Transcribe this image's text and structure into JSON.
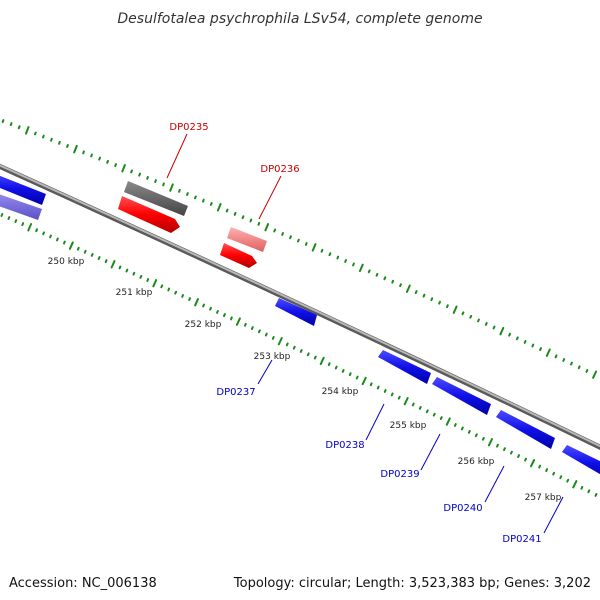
{
  "title": "Desulfotalea psychrophila LSv54, complete genome",
  "footer": {
    "accession": "Accession: NC_006138",
    "summary": "Topology: circular; Length: 3,523,383 bp; Genes: 3,202"
  },
  "colors": {
    "backbone": "#8a8a8a",
    "tick": "#1a8a1a",
    "label_red": "#cc0000",
    "label_blue": "#0000cc"
  },
  "ticks": [
    "250 kbp",
    "251 kbp",
    "252 kbp",
    "253 kbp",
    "254 kbp",
    "255 kbp",
    "256 kbp",
    "257 kbp"
  ],
  "genes": [
    {
      "label": "",
      "color": "#1a1ae6",
      "strand": "outer-row2"
    },
    {
      "label": "",
      "color": "#7a70e0",
      "strand": "outer-row3"
    },
    {
      "label": "DP0235",
      "color": "#ff0000",
      "strand": "forward"
    },
    {
      "label": "",
      "color": "#666666",
      "strand": "forward-top"
    },
    {
      "label": "DP0236",
      "color": "#ff0000",
      "strand": "forward"
    },
    {
      "label": "",
      "color": "#f08080",
      "strand": "forward-top"
    },
    {
      "label": "DP0237",
      "color": "#1a1ae6",
      "strand": "reverse"
    },
    {
      "label": "DP0238",
      "color": "#1a1ae6",
      "strand": "reverse"
    },
    {
      "label": "DP0239",
      "color": "#1a1ae6",
      "strand": "reverse"
    },
    {
      "label": "DP0240",
      "color": "#1a1ae6",
      "strand": "reverse"
    },
    {
      "label": "DP0241",
      "color": "#1a1ae6",
      "strand": "reverse"
    }
  ]
}
